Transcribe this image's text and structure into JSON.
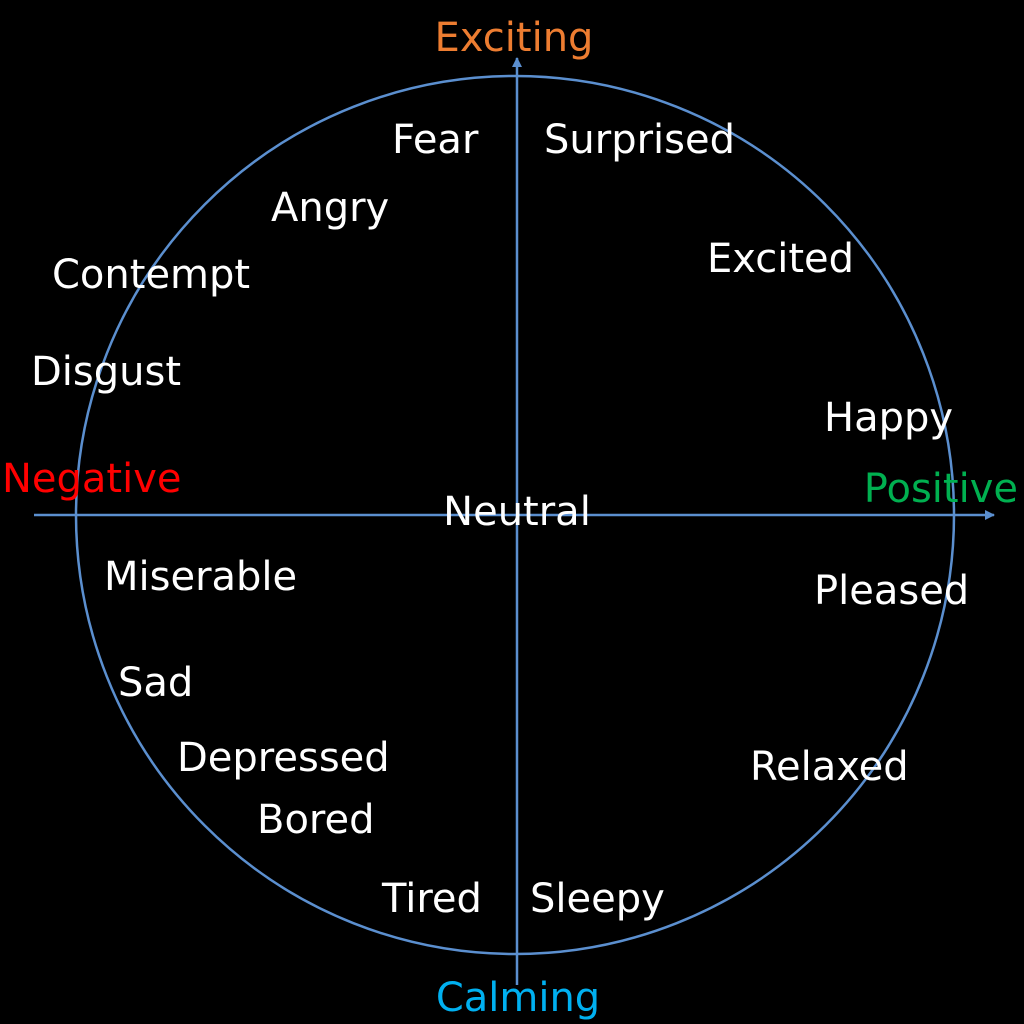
{
  "axes": {
    "top": {
      "label": "Exciting",
      "color": "#ED7D31"
    },
    "bottom": {
      "label": "Calming",
      "color": "#00B0F0"
    },
    "left": {
      "label": "Negative",
      "color": "#FF0000"
    },
    "right": {
      "label": "Positive",
      "color": "#00B050"
    }
  },
  "line_color": "#5B8FCF",
  "center_label": "Neutral",
  "emotions": [
    {
      "id": "fear",
      "label": "Fear"
    },
    {
      "id": "surprised",
      "label": "Surprised"
    },
    {
      "id": "angry",
      "label": "Angry"
    },
    {
      "id": "excited",
      "label": "Excited"
    },
    {
      "id": "contempt",
      "label": "Contempt"
    },
    {
      "id": "disgust",
      "label": "Disgust"
    },
    {
      "id": "happy",
      "label": "Happy"
    },
    {
      "id": "miserable",
      "label": "Miserable"
    },
    {
      "id": "pleased",
      "label": "Pleased"
    },
    {
      "id": "sad",
      "label": "Sad"
    },
    {
      "id": "depressed",
      "label": "Depressed"
    },
    {
      "id": "relaxed",
      "label": "Relaxed"
    },
    {
      "id": "bored",
      "label": "Bored"
    },
    {
      "id": "tired",
      "label": "Tired"
    },
    {
      "id": "sleepy",
      "label": "Sleepy"
    }
  ]
}
